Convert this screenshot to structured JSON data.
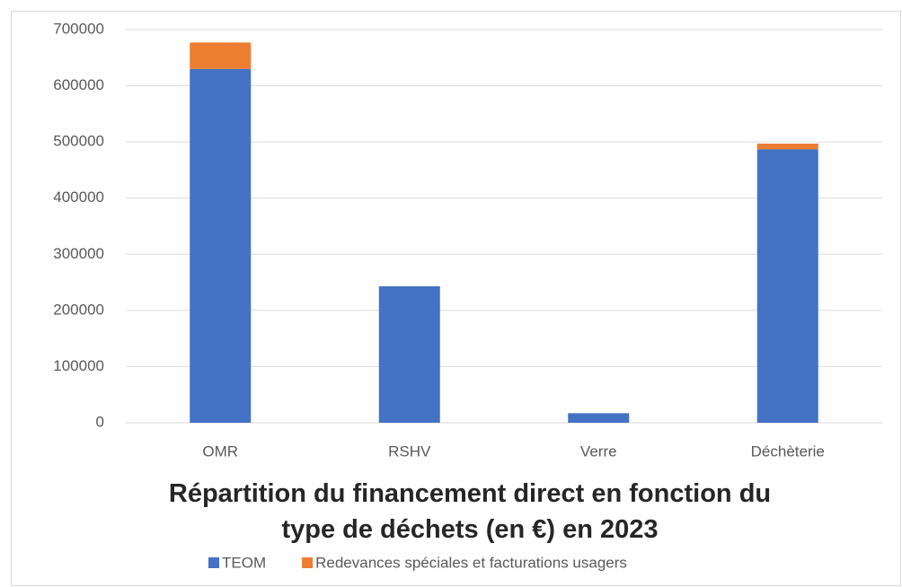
{
  "chart_data": {
    "type": "stacked_bar",
    "title": "Répartition du financement direct en fonction du type de déchets (en €) en 2023",
    "categories": [
      "OMR",
      "RSHV",
      "Verre",
      "Déchèterie"
    ],
    "series": [
      {
        "name": "TEOM",
        "color": "#4472c4",
        "values": [
          630000,
          243000,
          17000,
          487000
        ]
      },
      {
        "name": "Redevances spéciales et facturations usagers",
        "color": "#ed7d31",
        "values": [
          47000,
          0,
          0,
          10000
        ]
      }
    ],
    "ylim": [
      0,
      700000
    ],
    "yticks": [
      0,
      100000,
      200000,
      300000,
      400000,
      500000,
      600000,
      700000
    ],
    "grid": true,
    "legend": "bottom"
  }
}
